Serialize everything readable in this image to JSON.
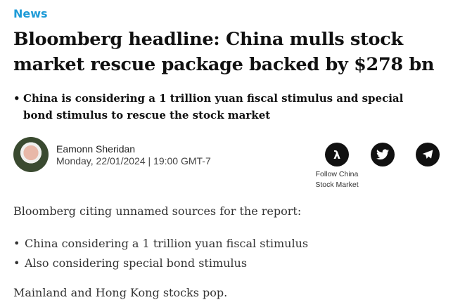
{
  "category": "News",
  "headline": "Bloomberg headline: China mulls stock market rescue package backed by $278 bn",
  "summary": [
    "China is considering a 1 trillion yuan fiscal stimulus and special bond stimulus to rescue the stock market"
  ],
  "author": {
    "name": "Eamonn Sheridan",
    "date": "Monday, 22/01/2024 | 19:00 GMT-7"
  },
  "social": {
    "follow_label": "Follow China Stock Market",
    "icons": [
      "follow-lambda-icon",
      "twitter-icon",
      "telegram-icon"
    ]
  },
  "body": {
    "intro": "Bloomberg citing unnamed sources for the report:",
    "bullets": [
      "China considering a 1 trillion yuan fiscal stimulus",
      "Also considering special bond stimulus"
    ],
    "outro": "Mainland and Hong Kong stocks pop."
  },
  "colors": {
    "accent": "#1e9bd7"
  }
}
